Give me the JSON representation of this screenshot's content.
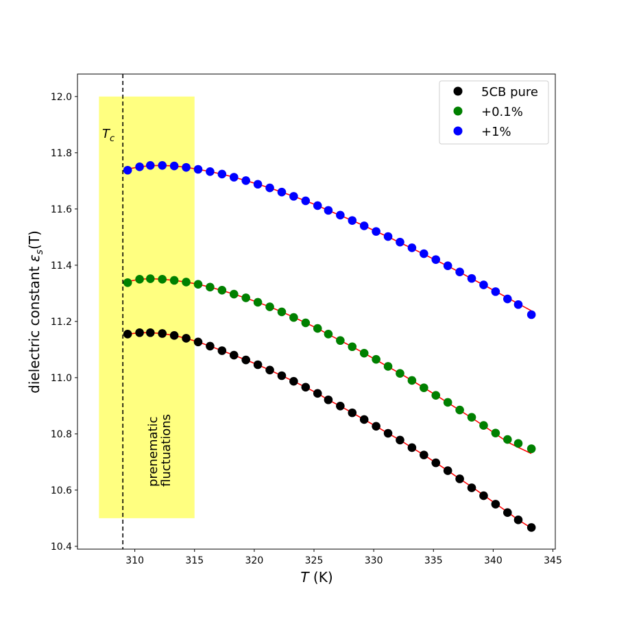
{
  "chart_data": {
    "type": "scatter",
    "xlabel_var": "T",
    "xlabel_unit": " (K)",
    "ylabel_prefix": "dielectric constant ",
    "ylabel_var": "ε",
    "ylabel_sub": "s",
    "ylabel_arg": "(T)",
    "xlim": [
      305.2,
      345.2
    ],
    "ylim": [
      10.39,
      12.08
    ],
    "xticks": [
      310,
      315,
      320,
      325,
      330,
      335,
      340,
      345
    ],
    "yticks": [
      10.4,
      10.6,
      10.8,
      11.0,
      11.2,
      11.4,
      11.6,
      11.8,
      12.0
    ],
    "xtick_labels": [
      "310",
      "315",
      "320",
      "325",
      "330",
      "335",
      "340",
      "345"
    ],
    "ytick_labels": [
      "10.4",
      "10.6",
      "10.8",
      "11.0",
      "11.2",
      "11.4",
      "11.6",
      "11.8",
      "12.0"
    ],
    "tc": 309.0,
    "tc_label": "T",
    "tc_label_sub": "c",
    "region": {
      "x": [
        307.0,
        315.0
      ],
      "y": [
        10.5,
        12.0
      ],
      "color": "#ffff80"
    },
    "region_label_line1": "prenematic",
    "region_label_line2": "fluctuations",
    "fit_color": "#ff0000",
    "x": [
      309.4,
      310.4,
      311.3,
      312.3,
      313.3,
      314.3,
      315.3,
      316.3,
      317.3,
      318.3,
      319.3,
      320.3,
      321.3,
      322.3,
      323.3,
      324.3,
      325.3,
      326.2,
      327.2,
      328.2,
      329.2,
      330.2,
      331.2,
      332.2,
      333.2,
      334.2,
      335.2,
      336.2,
      337.2,
      338.2,
      339.2,
      340.2,
      341.2,
      342.1,
      343.2
    ],
    "series": [
      {
        "name": "5CB pure",
        "color": "#000000",
        "values": [
          11.155,
          11.16,
          11.16,
          11.157,
          11.15,
          11.14,
          11.127,
          11.112,
          11.096,
          11.08,
          11.063,
          11.046,
          11.027,
          11.007,
          10.987,
          10.966,
          10.944,
          10.921,
          10.899,
          10.875,
          10.851,
          10.827,
          10.802,
          10.778,
          10.751,
          10.725,
          10.697,
          10.669,
          10.64,
          10.608,
          10.58,
          10.55,
          10.52,
          10.494,
          10.467
        ],
        "fit": [
          11.155,
          11.16,
          11.16,
          11.157,
          11.15,
          11.14,
          11.127,
          11.112,
          11.096,
          11.08,
          11.063,
          11.046,
          11.027,
          11.007,
          10.987,
          10.966,
          10.944,
          10.921,
          10.899,
          10.875,
          10.851,
          10.827,
          10.802,
          10.778,
          10.751,
          10.725,
          10.697,
          10.669,
          10.64,
          10.612,
          10.582,
          10.552,
          10.522,
          10.494,
          10.465
        ]
      },
      {
        "name": "+0.1%",
        "color": "#008000",
        "values": [
          11.338,
          11.35,
          11.352,
          11.35,
          11.346,
          11.34,
          11.332,
          11.322,
          11.311,
          11.297,
          11.284,
          11.268,
          11.252,
          11.234,
          11.214,
          11.195,
          11.175,
          11.155,
          11.132,
          11.11,
          11.087,
          11.065,
          11.04,
          11.015,
          10.99,
          10.964,
          10.937,
          10.912,
          10.885,
          10.859,
          10.83,
          10.803,
          10.78,
          10.766,
          10.747
        ],
        "fit": [
          11.342,
          11.35,
          11.352,
          11.35,
          11.346,
          11.34,
          11.332,
          11.322,
          11.31,
          11.297,
          11.283,
          11.268,
          11.252,
          11.234,
          11.215,
          11.195,
          11.175,
          11.154,
          11.132,
          11.11,
          11.087,
          11.063,
          11.039,
          11.015,
          10.99,
          10.964,
          10.938,
          10.911,
          10.884,
          10.857,
          10.829,
          10.8,
          10.771,
          10.752,
          10.73
        ]
      },
      {
        "name": "+1%",
        "color": "#0000ff",
        "values": [
          11.738,
          11.75,
          11.755,
          11.755,
          11.753,
          11.748,
          11.741,
          11.733,
          11.724,
          11.713,
          11.701,
          11.688,
          11.675,
          11.66,
          11.645,
          11.629,
          11.612,
          11.595,
          11.578,
          11.559,
          11.54,
          11.52,
          11.502,
          11.482,
          11.462,
          11.441,
          11.42,
          11.398,
          11.376,
          11.353,
          11.33,
          11.306,
          11.28,
          11.26,
          11.224
        ],
        "fit": [
          11.742,
          11.75,
          11.754,
          11.755,
          11.753,
          11.748,
          11.741,
          11.733,
          11.724,
          11.713,
          11.701,
          11.688,
          11.675,
          11.66,
          11.645,
          11.629,
          11.612,
          11.595,
          11.577,
          11.559,
          11.54,
          11.52,
          11.501,
          11.48,
          11.46,
          11.439,
          11.418,
          11.397,
          11.375,
          11.352,
          11.33,
          11.307,
          11.284,
          11.263,
          11.238
        ]
      }
    ]
  }
}
